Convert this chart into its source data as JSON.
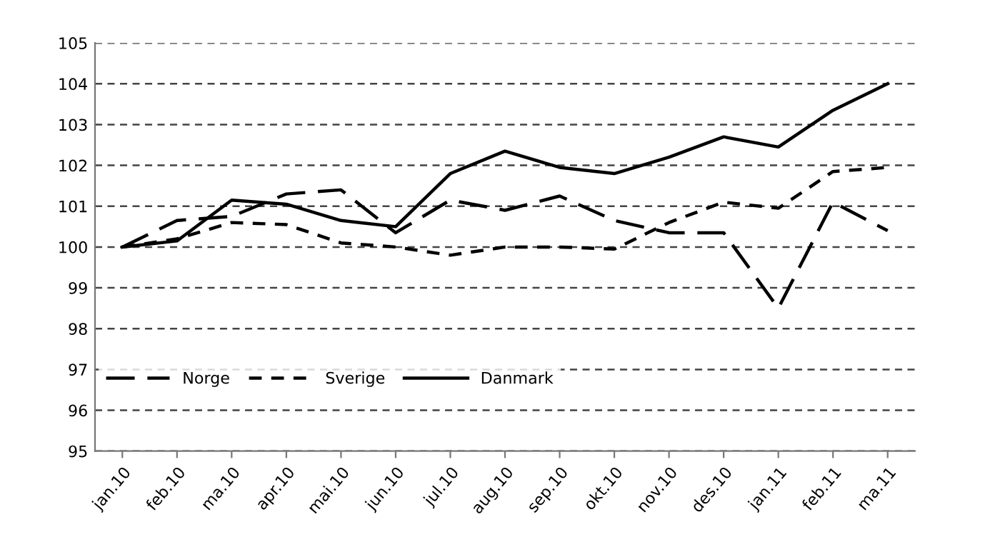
{
  "chart_data": {
    "type": "line",
    "categories": [
      "jan.10",
      "feb.10",
      "ma.10",
      "apr.10",
      "mai.10",
      "jun.10",
      "jul.10",
      "aug.10",
      "sep.10",
      "okt.10",
      "nov.10",
      "des.10",
      "jan.11",
      "feb.11",
      "ma.11"
    ],
    "series": [
      {
        "name": "Norge",
        "color": "#000000",
        "line_style": "dashed",
        "values": [
          100,
          100.65,
          100.75,
          101.3,
          101.4,
          100.35,
          101.15,
          100.9,
          101.25,
          100.65,
          100.35,
          100.35,
          98.5,
          101.1,
          100.4
        ]
      },
      {
        "name": "Sverige",
        "color": "#000000",
        "line_style": "dotted",
        "values": [
          100,
          100.2,
          100.6,
          100.55,
          100.1,
          100.0,
          99.8,
          100.0,
          100.0,
          99.95,
          100.6,
          101.1,
          100.95,
          101.85,
          101.95
        ]
      },
      {
        "name": "Danmark",
        "color": "#000000",
        "line_style": "solid",
        "values": [
          100,
          100.15,
          101.15,
          101.05,
          100.65,
          100.5,
          101.8,
          102.35,
          101.95,
          101.8,
          102.2,
          102.7,
          102.45,
          103.35,
          104.0
        ]
      }
    ],
    "ylim": [
      95,
      105
    ],
    "yticks": [
      95,
      96,
      97,
      98,
      99,
      100,
      101,
      102,
      103,
      104,
      105
    ],
    "grid": "y",
    "legend": "lower left",
    "marker": "none"
  }
}
